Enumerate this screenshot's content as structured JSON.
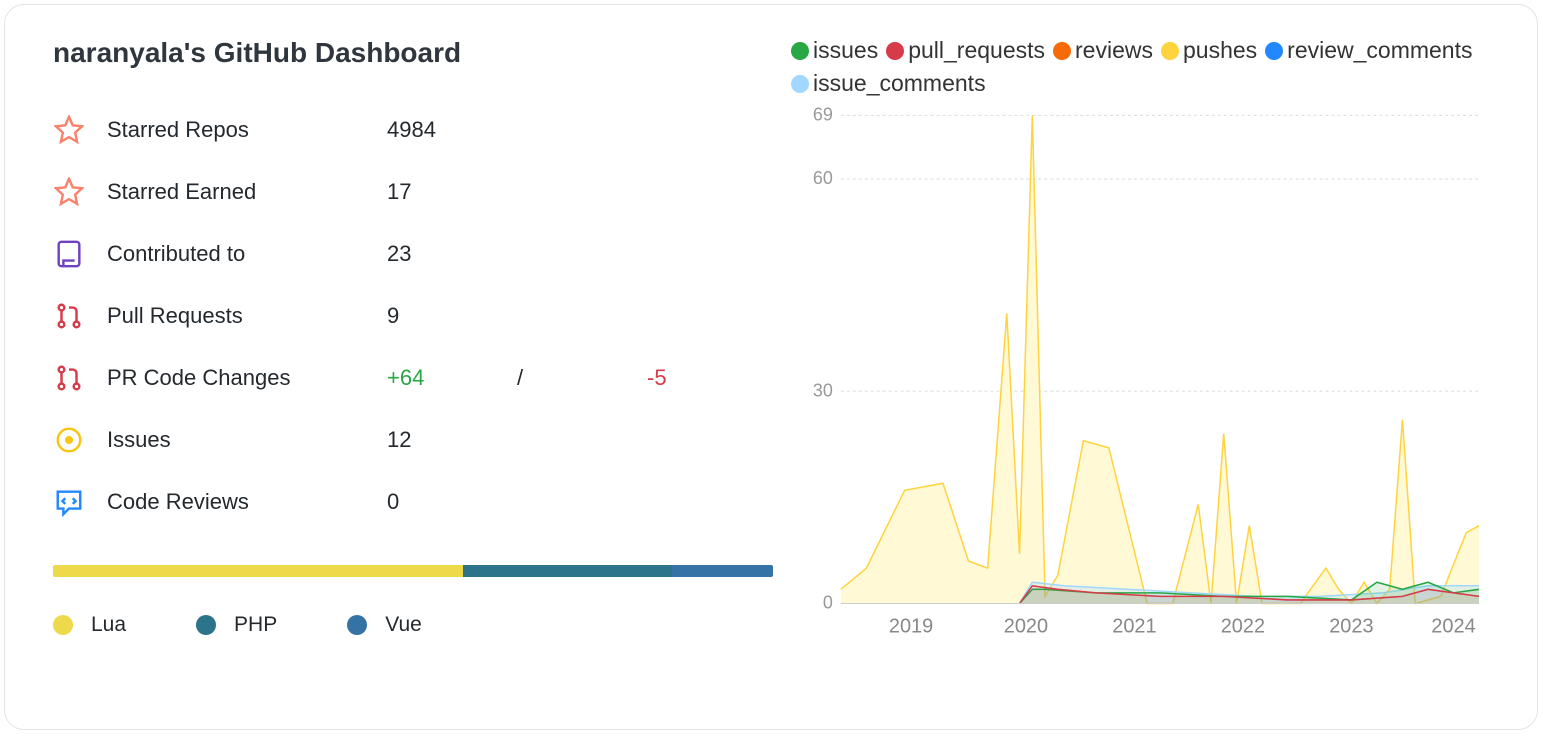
{
  "title": "naranyala's GitHub Dashboard",
  "stats": [
    {
      "icon": "star",
      "icon_color": "#f9826c",
      "label": "Starred Repos",
      "value": "4984"
    },
    {
      "icon": "star",
      "icon_color": "#f9826c",
      "label": "Starred Earned",
      "value": "17"
    },
    {
      "icon": "repo",
      "icon_color": "#6f42c1",
      "label": "Contributed to",
      "value": "23"
    },
    {
      "icon": "pr",
      "icon_color": "#d73a49",
      "label": "Pull Requests",
      "value": "9"
    },
    {
      "icon": "pr",
      "icon_color": "#d73a49",
      "label": "PR Code Changes",
      "value": "",
      "is_code_change": true
    },
    {
      "icon": "issue",
      "icon_color": "#f9c513",
      "label": "Issues",
      "value": "12"
    },
    {
      "icon": "review",
      "icon_color": "#2188ff",
      "label": "Code Reviews",
      "value": "0"
    }
  ],
  "code_changes": {
    "additions": "+64",
    "separator": "/",
    "deletions": "-5"
  },
  "languages": [
    {
      "name": "Lua",
      "color": "#eed94b",
      "pct": 57
    },
    {
      "name": "PHP",
      "color": "#2b7489",
      "pct": 29
    },
    {
      "name": "Vue",
      "color": "#3572a5",
      "pct": 14
    }
  ],
  "chart": {
    "type": "area",
    "legend": [
      {
        "label": "issues",
        "color": "#28a745"
      },
      {
        "label": "pull_requests",
        "color": "#d73a49"
      },
      {
        "label": "reviews",
        "color": "#f66a0a"
      },
      {
        "label": "pushes",
        "color": "#ffd33d"
      },
      {
        "label": "review_comments",
        "color": "#2188ff"
      },
      {
        "label": "issue_comments",
        "color": "#a2d8ff"
      }
    ],
    "ylim": [
      0,
      69
    ],
    "yticks": [
      0,
      30,
      60,
      69
    ],
    "x_labels": [
      "2019",
      "2020",
      "2021",
      "2022",
      "2023",
      "2024"
    ],
    "x_positions": [
      0.11,
      0.29,
      0.46,
      0.63,
      0.8,
      0.96
    ],
    "grid_color": "#dddddd",
    "background_color": "#ffffff",
    "series": {
      "pushes": {
        "color": "#ffd33d",
        "fill": "#fff9d6",
        "points": [
          [
            0,
            2
          ],
          [
            0.04,
            5
          ],
          [
            0.1,
            16
          ],
          [
            0.16,
            17
          ],
          [
            0.2,
            6
          ],
          [
            0.23,
            5
          ],
          [
            0.26,
            41
          ],
          [
            0.28,
            7
          ],
          [
            0.3,
            69
          ],
          [
            0.32,
            1
          ],
          [
            0.34,
            4
          ],
          [
            0.38,
            23
          ],
          [
            0.42,
            22
          ],
          [
            0.48,
            0
          ],
          [
            0.52,
            0
          ],
          [
            0.56,
            14
          ],
          [
            0.58,
            0
          ],
          [
            0.6,
            24
          ],
          [
            0.62,
            0
          ],
          [
            0.64,
            11
          ],
          [
            0.66,
            0
          ],
          [
            0.72,
            0
          ],
          [
            0.76,
            5
          ],
          [
            0.78,
            2
          ],
          [
            0.8,
            0
          ],
          [
            0.82,
            3
          ],
          [
            0.84,
            0
          ],
          [
            0.86,
            2
          ],
          [
            0.88,
            26
          ],
          [
            0.9,
            0
          ],
          [
            0.94,
            1
          ],
          [
            0.98,
            10
          ],
          [
            1,
            11
          ]
        ]
      },
      "issues": {
        "color": "#28a745",
        "fill": "rgba(40,167,69,0.15)",
        "points": [
          [
            0.28,
            0
          ],
          [
            0.3,
            2
          ],
          [
            0.32,
            2
          ],
          [
            0.4,
            1.5
          ],
          [
            0.5,
            1.5
          ],
          [
            0.6,
            1
          ],
          [
            0.7,
            1
          ],
          [
            0.8,
            0.5
          ],
          [
            0.84,
            3
          ],
          [
            0.88,
            2
          ],
          [
            0.92,
            3
          ],
          [
            0.96,
            1.5
          ],
          [
            1,
            2
          ]
        ]
      },
      "pull_requests": {
        "color": "#d73a49",
        "fill": "rgba(215,58,73,0.1)",
        "points": [
          [
            0.28,
            0
          ],
          [
            0.3,
            2.5
          ],
          [
            0.34,
            2
          ],
          [
            0.4,
            1.5
          ],
          [
            0.5,
            1
          ],
          [
            0.6,
            1
          ],
          [
            0.7,
            0.5
          ],
          [
            0.8,
            0.5
          ],
          [
            0.88,
            1
          ],
          [
            0.92,
            2
          ],
          [
            1,
            1
          ]
        ]
      },
      "issue_comments": {
        "color": "#a2d8ff",
        "fill": "rgba(162,216,255,0.3)",
        "points": [
          [
            0.28,
            0
          ],
          [
            0.3,
            3
          ],
          [
            0.35,
            2.5
          ],
          [
            0.45,
            2
          ],
          [
            0.55,
            1.5
          ],
          [
            0.65,
            1
          ],
          [
            0.75,
            1
          ],
          [
            0.85,
            1.5
          ],
          [
            0.92,
            2.5
          ],
          [
            1,
            2.5
          ]
        ]
      }
    }
  }
}
